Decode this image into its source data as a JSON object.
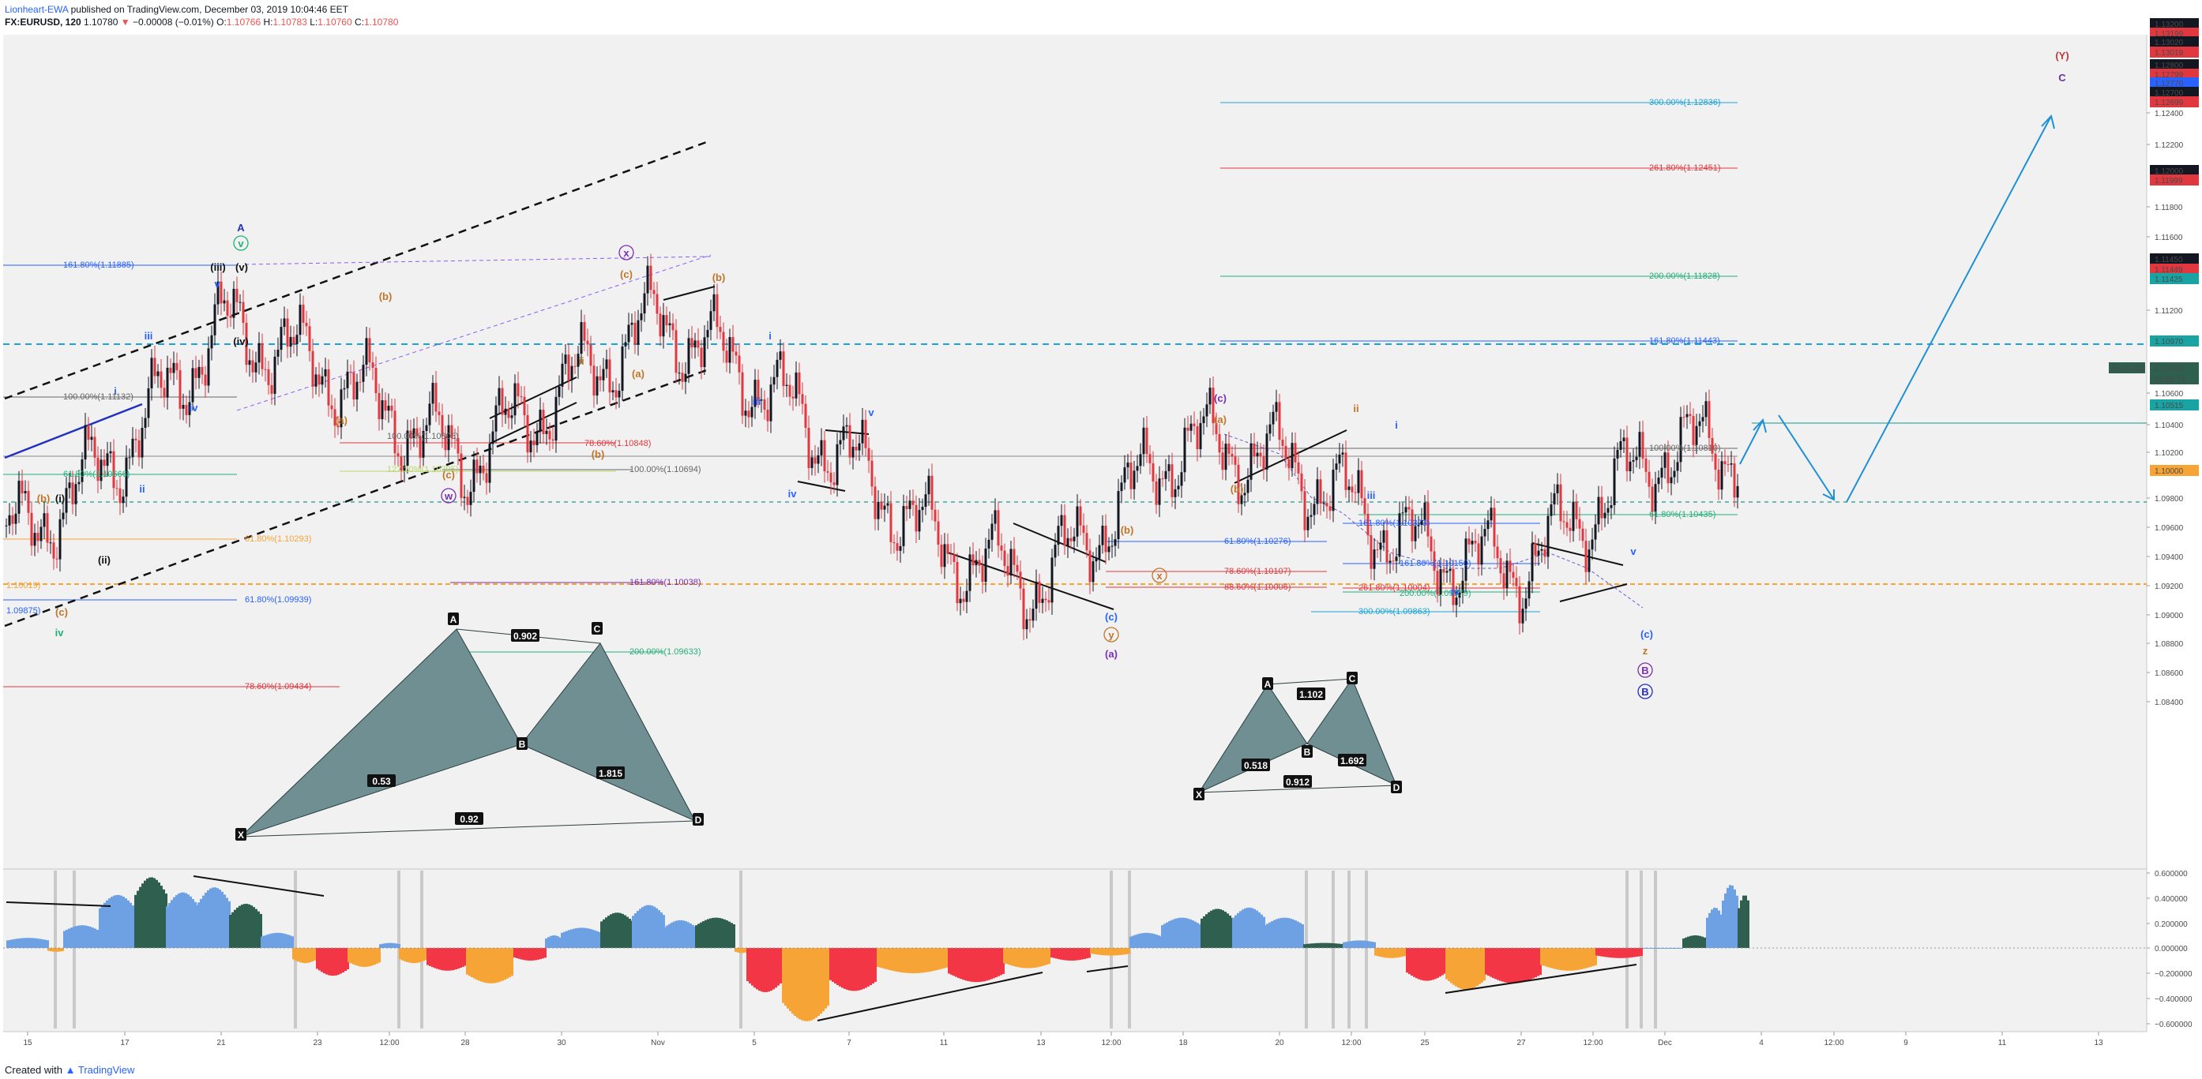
{
  "header": {
    "author": "Lionheart-EWA",
    "published": " published on TradingView.com, December 03, 2019 10:04:46 EET",
    "symbol": "FX:EURUSD, 120",
    "last": "1.10780",
    "change": "−0.00008 (−0.01%)",
    "o_label": "O:",
    "o": "1.10766",
    "h_label": "H:",
    "h": "1.10783",
    "l_label": "L:",
    "l": "1.10760",
    "c_label": "C:",
    "c": "1.10780"
  },
  "footer": {
    "created": "Created with",
    "brand": "TradingView"
  },
  "colors": {
    "up": "#131722",
    "down": "#e0383e",
    "fib_blue": "#2962ff",
    "fib_red": "#e0383e",
    "osc_green": "#2f5f4f",
    "osc_blue": "#6ea1e3",
    "osc_red": "#f23645",
    "osc_orange": "#f7a436"
  },
  "chart_data": {
    "type": "line",
    "series": [
      {
        "name": "EURUSD",
        "x": [
          "15",
          "17",
          "21",
          "23",
          "28",
          "30",
          "Nov",
          "5",
          "7",
          "11",
          "13",
          "18",
          "20",
          "25",
          "27",
          "Dec"
        ],
        "values": [
          1.103,
          1.1078,
          1.1148,
          1.1125,
          1.107,
          1.111,
          1.1152,
          1.1118,
          1.107,
          1.102,
          1.1,
          1.1082,
          1.1072,
          1.1018,
          1.101,
          1.1078
        ]
      }
    ],
    "ylim": [
      1.084,
      1.132
    ],
    "price_ticks": [
      "1.13200",
      "1.13199",
      "1.13020",
      "1.13019",
      "1.12800",
      "1.12799",
      "1.12770",
      "1.12700",
      "1.12699",
      "1.12400",
      "1.12200",
      "1.12000",
      "1.11999",
      "1.11800",
      "1.11600",
      "1.11450",
      "1.11449",
      "1.11425",
      "1.11200",
      "1.10970",
      "1.10780",
      "01:55:18",
      "1.10600",
      "1.10515",
      "1.10400",
      "1.10200",
      "1.10000",
      "1.09800",
      "1.09600",
      "1.09400",
      "1.09200",
      "1.09000",
      "1.08800",
      "1.08600",
      "1.08400"
    ],
    "time_ticks": [
      "15",
      "17",
      "21",
      "23",
      "12:00",
      "28",
      "30",
      "Nov",
      "5",
      "7",
      "11",
      "13",
      "12:00",
      "18",
      "20",
      "12:00",
      "25",
      "27",
      "12:00",
      "Dec",
      "4",
      "12:00",
      "9",
      "11",
      "13"
    ],
    "osc_ticks": [
      "0.600000",
      "0.400000",
      "0.200000",
      "0.000000",
      "−0.200000",
      "−0.400000",
      "−0.600000"
    ],
    "price_label": "EURUSD",
    "fib_labels": [
      "161.80%(1.11885)",
      "100.00%(1.11132)",
      "61.80%(1.10666)",
      "61.80%(1.10293)",
      "1.10019)",
      "1.09875)",
      "61.80%(1.09939)",
      "78.60%(1.09434)",
      "100.00%(1.10805)",
      "127.20%(1.10705)",
      "78.60%(1.10848)",
      "100.00%(1.10694)",
      "161.80%(1.10038)",
      "200.00%(1.09633)",
      "300.00%(1.12836)",
      "261.80%(1.12451)",
      "200.00%(1.11828)",
      "161.80%(1.11443)",
      "100.00%(1.10810)",
      "61.80%(1.10435)",
      "61.80%(1.10276)",
      "78.60%(1.10107)",
      "88.60%(1.10006)",
      "161.80%(1.10373)",
      "161.80%(1.10150)",
      "261.80%(1.10004)",
      "200.00%(1.09979)",
      "300.00%(1.09863)"
    ],
    "wave_labels": [
      "A",
      "v",
      "(iii)",
      "(v)",
      "v",
      "iii",
      "i",
      "iv",
      "ii",
      "(iv)",
      "(b)",
      "(i)",
      "(ii)",
      "(c)",
      "iv",
      "(b)",
      "(a)",
      "(c)",
      "w",
      "(c)",
      "x",
      "(b)",
      "(a)",
      "(b)",
      "ii",
      "i",
      "iii",
      "iv",
      "v",
      "(c)",
      "y",
      "(a)",
      "(b)",
      "x",
      "(c)",
      "(a)",
      "(b)",
      "ii",
      "i",
      "iii",
      "iv",
      "v",
      "(c)",
      "z",
      "B",
      "B",
      "(Y)",
      "C"
    ],
    "pattern_labels": [
      "A",
      "C",
      "0.902",
      "X",
      "D",
      "B",
      "0.53",
      "1.815",
      "0.92",
      "A",
      "C",
      "1.102",
      "B",
      "X",
      "D",
      "0.518",
      "1.692",
      "0.912"
    ]
  }
}
